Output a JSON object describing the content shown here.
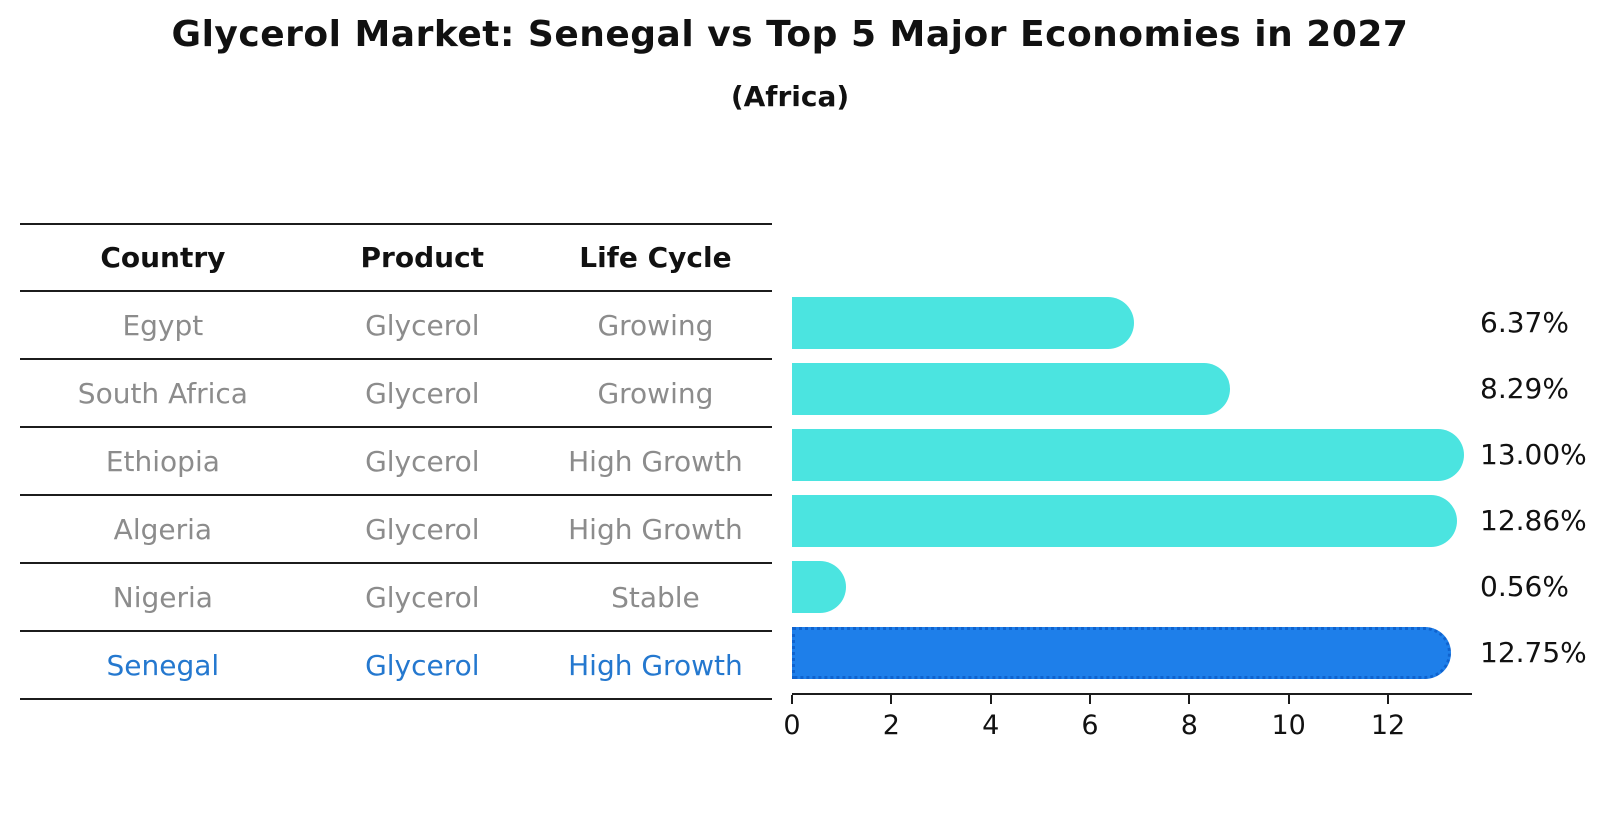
{
  "title": "Glycerol Market: Senegal vs Top 5 Major Economies in 2027",
  "subtitle": "(Africa)",
  "table": {
    "headers": [
      "Country",
      "Product",
      "Life Cycle"
    ],
    "rows": [
      {
        "country": "Egypt",
        "product": "Glycerol",
        "life_cycle": "Growing",
        "highlighted": false
      },
      {
        "country": "South Africa",
        "product": "Glycerol",
        "life_cycle": "Growing",
        "highlighted": false
      },
      {
        "country": "Ethiopia",
        "product": "Glycerol",
        "life_cycle": "High Growth",
        "highlighted": false
      },
      {
        "country": "Algeria",
        "product": "Glycerol",
        "life_cycle": "High Growth",
        "highlighted": false
      },
      {
        "country": "Nigeria",
        "product": "Glycerol",
        "life_cycle": "Stable",
        "highlighted": false
      },
      {
        "country": "Senegal",
        "product": "Glycerol",
        "life_cycle": "High Growth",
        "highlighted": true
      }
    ]
  },
  "chart_data": {
    "type": "bar",
    "orientation": "horizontal",
    "categories": [
      "Egypt",
      "South Africa",
      "Ethiopia",
      "Algeria",
      "Nigeria",
      "Senegal"
    ],
    "values": [
      6.37,
      8.29,
      13.0,
      12.86,
      0.56,
      12.75
    ],
    "data_labels": [
      "6.37%",
      "8.29%",
      "13.00%",
      "12.86%",
      "0.56%",
      "12.75%"
    ],
    "xlim": [
      0,
      13.65
    ],
    "xticks": [
      "0",
      "2",
      "4",
      "6",
      "8",
      "10",
      "12"
    ],
    "grid": false,
    "legend": false,
    "bar_color": "#4be4e0",
    "highlight_index": 5,
    "highlight_bar_color": "#1e7fea"
  },
  "colors": {
    "bar_cyan": "#4be4e0",
    "bar_blue": "#1e7fea",
    "highlight_border": "#0f63cf",
    "highlight_text": "#2478cf",
    "muted_text": "#8c8c8c",
    "line": "#1c1c1c"
  }
}
